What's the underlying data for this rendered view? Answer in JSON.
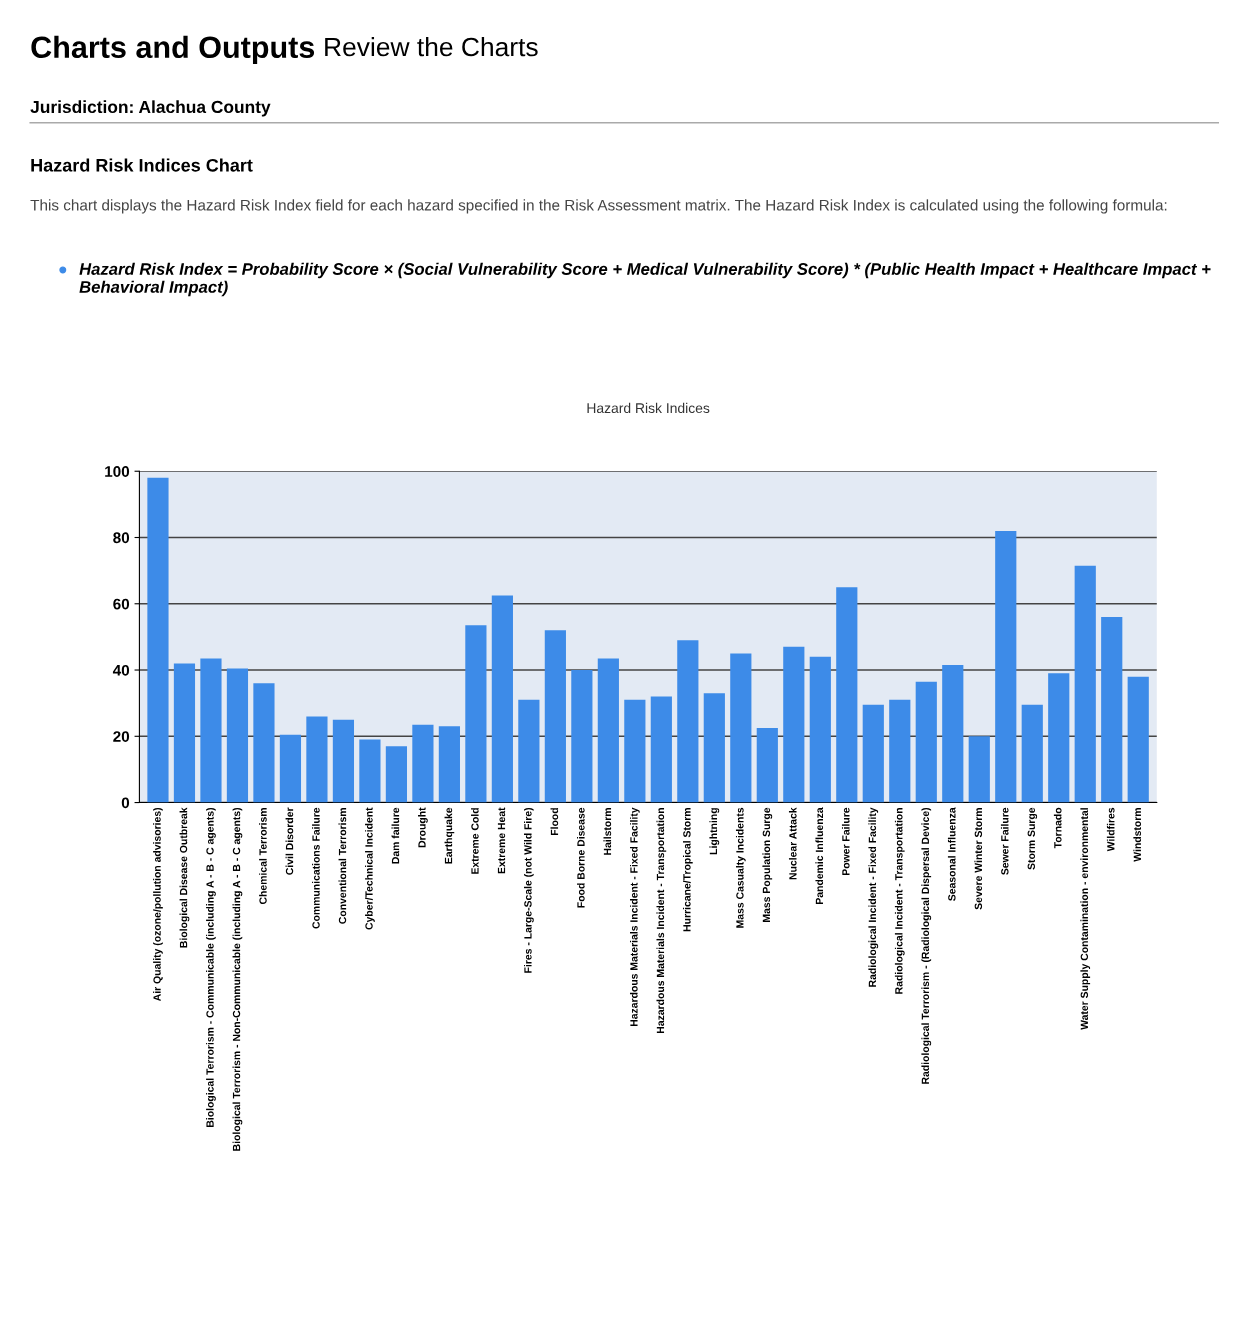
{
  "chart_data": {
    "type": "bar",
    "title": "Hazard Risk Indices",
    "annotations": [
      "Charts and Outputs",
      "Review the Charts",
      "Jurisdiction: Alachua County",
      "Hazard Risk Indices Chart",
      "This chart displays the Hazard Risk Index field for each hazard specified in the Risk Assessment matrix. The Hazard Risk Index is calculated using the following formula:",
      "Hazard Risk Index = Probability Score × (Social Vulnerability Score + Medical Vulnerability Score) * (Public Health Impact + Healthcare Impact + Behavioral Impact)"
    ],
    "categories": [
      "Air Quality (ozone/pollution advisories)",
      "Biological Disease Outbreak",
      "Biological Terrorism - Communicable (including A - B - C agents)",
      "Biological Terrorism - Non-Communicable (including A - B - C agents)",
      "Chemical Terrorism",
      "Civil Disorder",
      "Communications Failure",
      "Conventional Terrorism",
      "Cyber/Technical Incident",
      "Dam failure",
      "Drought",
      "Earthquake",
      "Extreme Cold",
      "Extreme Heat",
      "Fires - Large-Scale (not Wild Fire)",
      "Flood",
      "Food Borne Disease",
      "Hailstorm",
      "Hazardous Materials Incident - Fixed Facility",
      "Hazardous Materials Incident - Transportation",
      "Hurricane/Tropical Storm",
      "Lightning",
      "Mass Casualty Incidents",
      "Mass Population Surge",
      "Nuclear Attack",
      "Pandemic Influenza",
      "Power Failure",
      "Radiological Incident - Fixed Facility",
      "Radiological Incident - Transportation",
      "Radiological Terrorism - (Radiological Dispersal Device)",
      "Seasonal Influenza",
      "Severe Winter Storm",
      "Sewer Failure",
      "Storm Surge",
      "Tornado",
      "Water Supply Contamination - environmental",
      "Wildfires",
      "Windstorm"
    ],
    "values": [
      98,
      42,
      43.5,
      40.5,
      36,
      20.5,
      26,
      25,
      19,
      17,
      23.5,
      23,
      53.5,
      62.5,
      31,
      52,
      40,
      43.5,
      31,
      32,
      49,
      33,
      45,
      22.5,
      47,
      44,
      65,
      29.5,
      31,
      36.5,
      41.5,
      20,
      82,
      29.5,
      39,
      71.5,
      56,
      38
    ],
    "color": "#3d8be8",
    "ylim": [
      0,
      100
    ],
    "yticks": [
      0,
      20,
      40,
      60,
      80,
      100
    ],
    "grid": "y"
  }
}
